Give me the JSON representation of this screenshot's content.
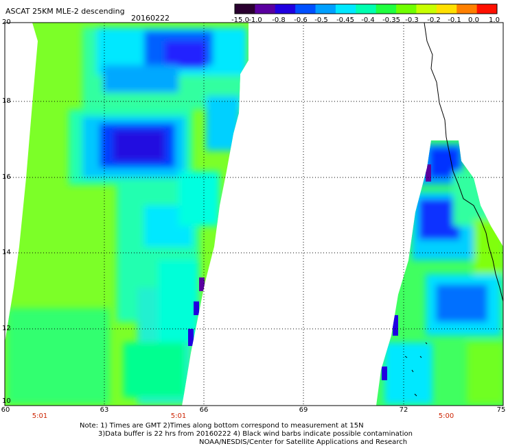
{
  "header": {
    "title": "ASCAT 25KM MLE-2 descending",
    "date": "20160222"
  },
  "colorbar": {
    "ticks": [
      "-15.0",
      "-1.0",
      "-0.8",
      "-0.6",
      "-0.5",
      "-0.45",
      "-0.4",
      "-0.35",
      "-0.3",
      "-0.2",
      "-0.1",
      "0.0",
      "1.0"
    ],
    "colors": [
      "#2a0030",
      "#5a00a0",
      "#2000e0",
      "#0050ff",
      "#00a0ff",
      "#00e8ff",
      "#00ffb0",
      "#20ff40",
      "#70ff00",
      "#c8ff00",
      "#ffe000",
      "#ff8000",
      "#ff1000"
    ]
  },
  "axes": {
    "lat_labels": [
      "20",
      "18",
      "16",
      "14",
      "12",
      "10"
    ],
    "lon_labels": [
      "60",
      "63",
      "66",
      "69",
      "72",
      "75"
    ],
    "times": [
      "5:01",
      "5:01",
      "5:00"
    ]
  },
  "notes": [
    "Note: 1) Times are GMT 2)Times along bottom correspond to measurement at 15N",
    "3)Data buffer is 22 hrs from 20160222 4) Black wind barbs indicate possible contamination",
    "NOAA/NESDIS/Center for Satellite Applications and Research"
  ]
}
